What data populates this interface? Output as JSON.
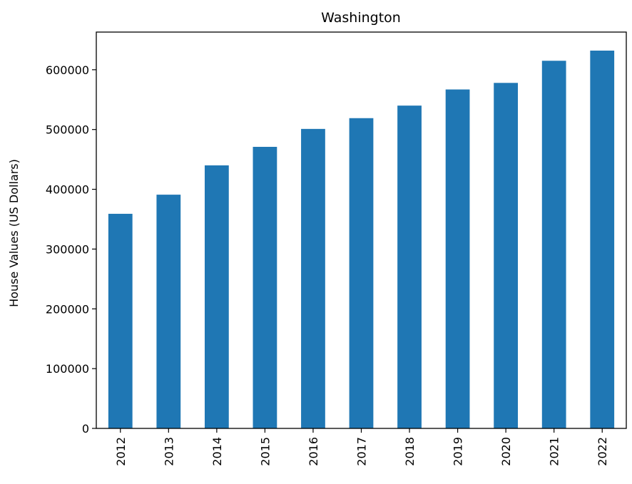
{
  "chart_data": {
    "type": "bar",
    "title": "Washington",
    "xlabel": "",
    "ylabel": "House Values (US Dollars)",
    "categories": [
      "2012",
      "2013",
      "2014",
      "2015",
      "2016",
      "2017",
      "2018",
      "2019",
      "2020",
      "2021",
      "2022"
    ],
    "values": [
      359000,
      391000,
      440000,
      471000,
      501000,
      519000,
      540000,
      567000,
      578000,
      615000,
      632000
    ],
    "ylim": [
      0,
      663000
    ],
    "yticks": [
      0,
      100000,
      200000,
      300000,
      400000,
      500000,
      600000
    ],
    "ytick_labels": [
      "0",
      "100000",
      "200000",
      "300000",
      "400000",
      "500000",
      "600000"
    ],
    "bar_color": "#1f77b4",
    "grid": false,
    "legend": "none"
  }
}
